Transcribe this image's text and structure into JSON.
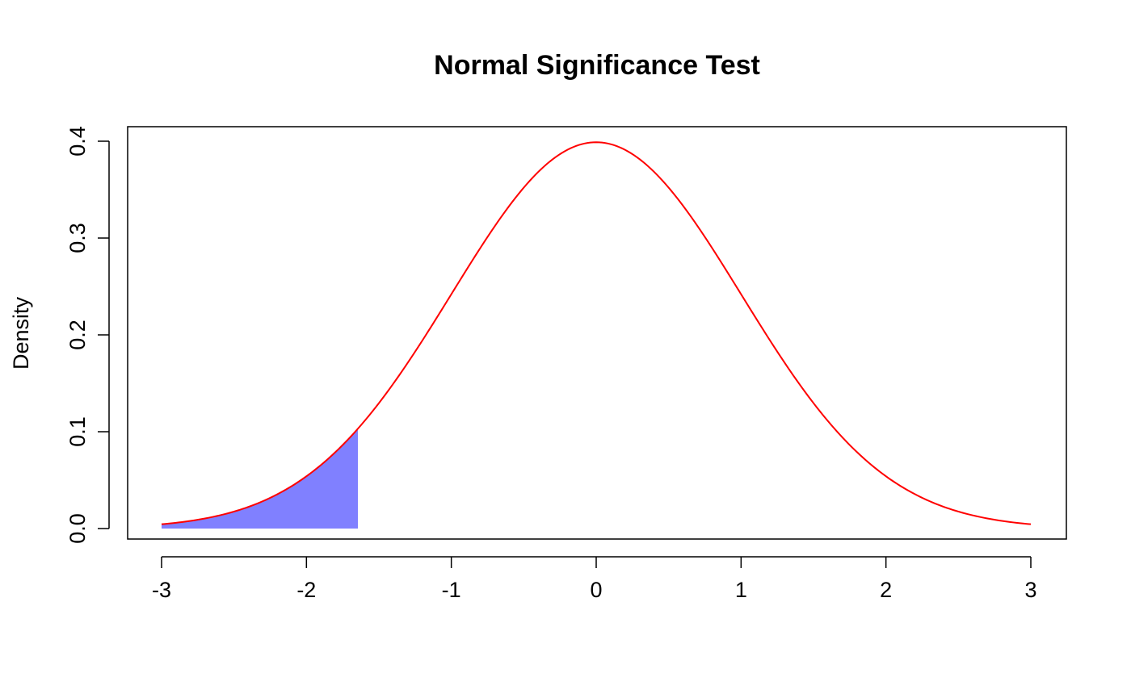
{
  "chart_data": {
    "type": "line",
    "title": "Normal Significance Test",
    "xlabel": "",
    "ylabel": "Density",
    "xlim": [
      -3,
      3
    ],
    "ylim": [
      0,
      0.4
    ],
    "xticks": [
      -3,
      -2,
      -1,
      0,
      1,
      2,
      3
    ],
    "yticks": [
      0.0,
      0.1,
      0.2,
      0.3,
      0.4
    ],
    "xtick_labels": [
      "-3",
      "-2",
      "-1",
      "0",
      "1",
      "2",
      "3"
    ],
    "ytick_labels": [
      "0.0",
      "0.1",
      "0.2",
      "0.3",
      "0.4"
    ],
    "grid": false,
    "series": [
      {
        "distribution": "standard normal density",
        "mean": 0,
        "sd": 1,
        "x": [
          -3,
          -2.5,
          -2,
          -1.5,
          -1,
          -0.5,
          0,
          0.5,
          1,
          1.5,
          2,
          2.5,
          3
        ],
        "y": [
          0.0044,
          0.0175,
          0.054,
          0.1295,
          0.242,
          0.3521,
          0.3989,
          0.3521,
          0.242,
          0.1295,
          0.054,
          0.0175,
          0.0044
        ],
        "color": "#FF0000"
      }
    ],
    "shaded_region": {
      "x_from": -3,
      "x_to": -1.645,
      "color": "#8080FF"
    }
  }
}
